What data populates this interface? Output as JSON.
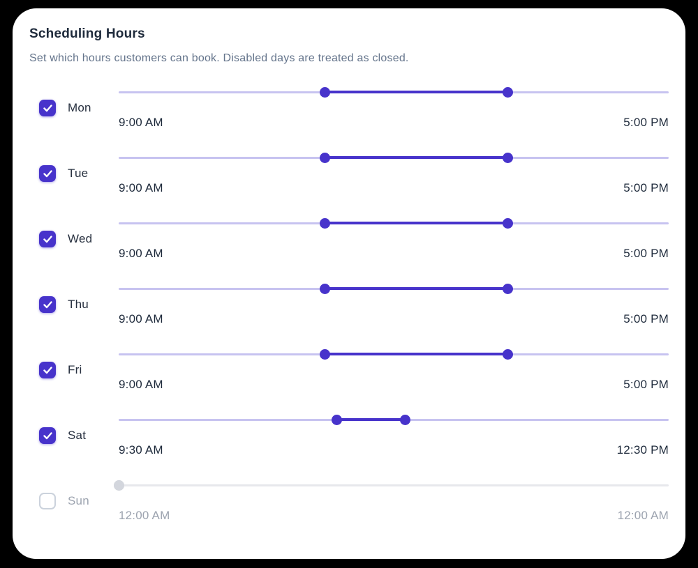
{
  "header": {
    "title": "Scheduling Hours",
    "subtitle": "Set which hours customers can book. Disabled days are treated as closed."
  },
  "colors": {
    "accent": "#4733cb",
    "track": "#c7c3f0",
    "disabled_track": "#e7e8ec",
    "disabled_handle": "#d3d6dd",
    "title_text": "#1e2a3b",
    "subtitle_text": "#64748b",
    "disabled_text": "#9ca3af"
  },
  "days": [
    {
      "label": "Mon",
      "enabled": true,
      "start": "9:00 AM",
      "end": "5:00 PM",
      "start_pct": 37.5,
      "end_pct": 70.8
    },
    {
      "label": "Tue",
      "enabled": true,
      "start": "9:00 AM",
      "end": "5:00 PM",
      "start_pct": 37.5,
      "end_pct": 70.8
    },
    {
      "label": "Wed",
      "enabled": true,
      "start": "9:00 AM",
      "end": "5:00 PM",
      "start_pct": 37.5,
      "end_pct": 70.8
    },
    {
      "label": "Thu",
      "enabled": true,
      "start": "9:00 AM",
      "end": "5:00 PM",
      "start_pct": 37.5,
      "end_pct": 70.8
    },
    {
      "label": "Fri",
      "enabled": true,
      "start": "9:00 AM",
      "end": "5:00 PM",
      "start_pct": 37.5,
      "end_pct": 70.8
    },
    {
      "label": "Sat",
      "enabled": true,
      "start": "9:30 AM",
      "end": "12:30 PM",
      "start_pct": 39.6,
      "end_pct": 52.1
    },
    {
      "label": "Sun",
      "enabled": false,
      "start": "12:00 AM",
      "end": "12:00 AM",
      "start_pct": 0,
      "end_pct": 0
    }
  ]
}
